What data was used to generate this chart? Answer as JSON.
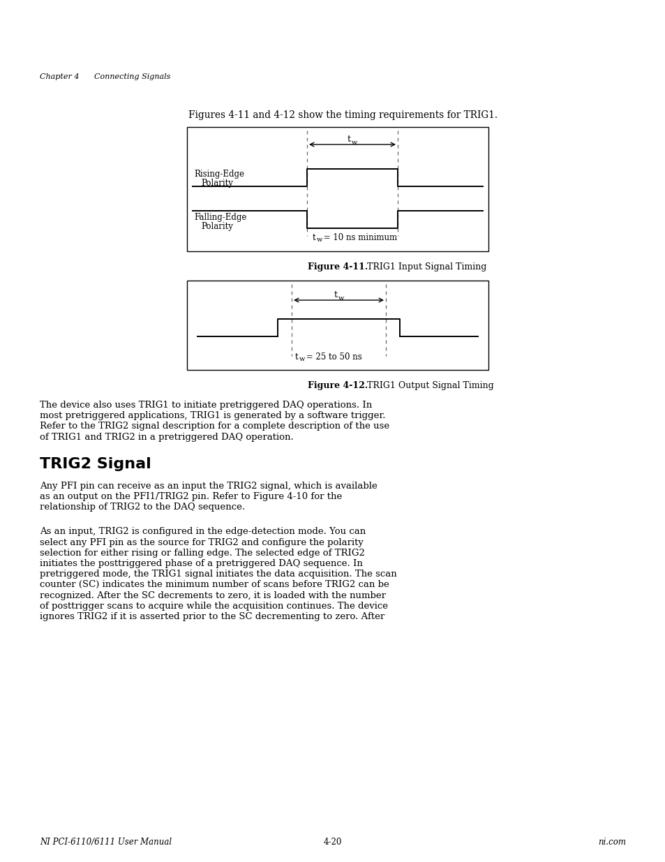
{
  "bg_color": "#ffffff",
  "page_width": 9.54,
  "page_height": 12.35,
  "dpi": 100,
  "header_chapter": "Chapter 4",
  "header_section": "Connecting Signals",
  "intro_text": "Figures 4-11 and 4-12 show the timing requirements for TRIG1.",
  "fig1_label1_line1": "Rising-Edge",
  "fig1_label1_line2": "Polarity",
  "fig1_label2_line1": "Falling-Edge",
  "fig1_label2_line2": "Polarity",
  "fig1_tw_label": "t",
  "fig1_tw_sub": "w",
  "fig1_annotation": "t",
  "fig1_annotation_sub": "w",
  "fig1_annotation_rest": " = 10 ns minimum",
  "fig2_tw_label": "t",
  "fig2_tw_sub": "w",
  "fig2_annotation": "t",
  "fig2_annotation_sub": "w",
  "fig2_annotation_rest": " = 25 to 50 ns",
  "fig1_caption_bold": "Figure 4-11.",
  "fig1_caption_normal": "  TRIG1 Input Signal Timing",
  "fig2_caption_bold": "Figure 4-12.",
  "fig2_caption_normal": "  TRIG1 Output Signal Timing",
  "section_title": "TRIG2 Signal",
  "para1_lines": [
    "The device also uses TRIG1 to initiate pretriggered DAQ operations. In",
    "most pretriggered applications, TRIG1 is generated by a software trigger.",
    "Refer to the TRIG2 signal description for a complete description of the use",
    "of TRIG1 and TRIG2 in a pretriggered DAQ operation."
  ],
  "para2_lines": [
    "Any PFI pin can receive as an input the TRIG2 signal, which is available",
    "as an output on the PFI1/TRIG2 pin. Refer to Figure 4-10 for the",
    "relationship of TRIG2 to the DAQ sequence."
  ],
  "para3_lines": [
    "As an input, TRIG2 is configured in the edge-detection mode. You can",
    "select any PFI pin as the source for TRIG2 and configure the polarity",
    "selection for either rising or falling edge. The selected edge of TRIG2",
    "initiates the posttriggered phase of a pretriggered DAQ sequence. In",
    "pretriggered mode, the TRIG1 signal initiates the data acquisition. The scan",
    "counter (SC) indicates the minimum number of scans before TRIG2 can be",
    "recognized. After the SC decrements to zero, it is loaded with the number",
    "of posttrigger scans to acquire while the acquisition continues. The device",
    "ignores TRIG2 if it is asserted prior to the SC decrementing to zero. After"
  ],
  "footer_left": "NI PCI-6110/6111 User Manual",
  "footer_center": "4-20",
  "footer_right": "ni.com",
  "text_color": "#000000",
  "line_color": "#000000",
  "box_color": "#000000",
  "dashed_color": "#666666"
}
